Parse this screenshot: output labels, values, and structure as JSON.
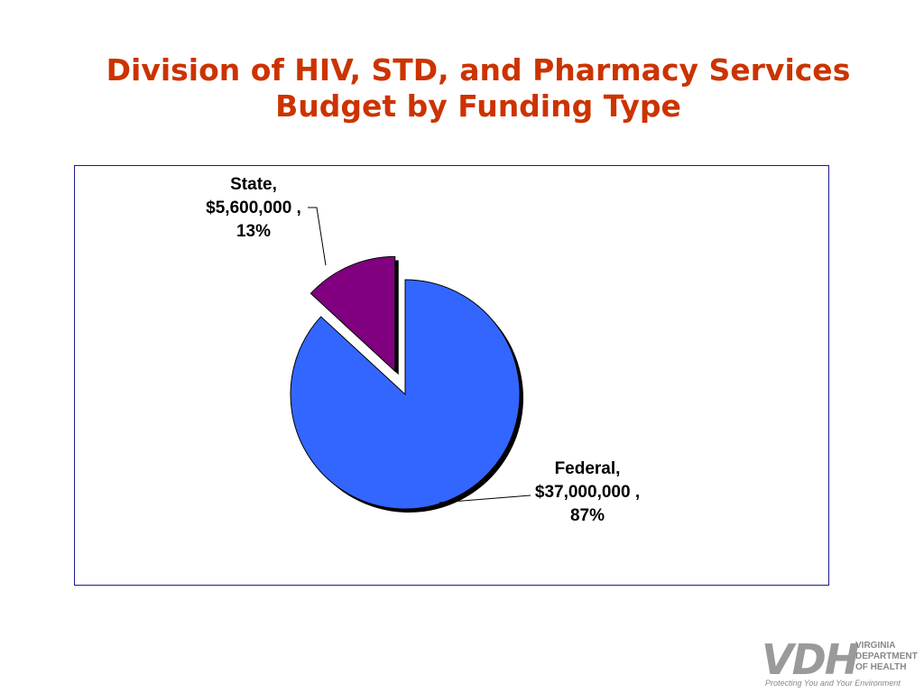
{
  "slide": {
    "title_line1": "Division of HIV, STD, and Pharmacy Services",
    "title_line2": "Budget by Funding Type"
  },
  "chart_data": {
    "type": "pie",
    "title": "",
    "slices": [
      {
        "name": "State",
        "value": 5600000,
        "percent": 13,
        "color": "#800080",
        "exploded": true,
        "label_lines": [
          "State,",
          "$5,600,000 ,",
          "13%"
        ]
      },
      {
        "name": "Federal",
        "value": 37000000,
        "percent": 87,
        "color": "#3366ff",
        "exploded": false,
        "label_lines": [
          "Federal,",
          "$37,000,000 ,",
          "87%"
        ]
      }
    ],
    "legend": "none"
  },
  "logo": {
    "mark": "VDH",
    "line1": "VIRGINIA",
    "line2": "DEPARTMENT",
    "line3": "OF HEALTH",
    "tagline": "Protecting You and Your Environment"
  }
}
